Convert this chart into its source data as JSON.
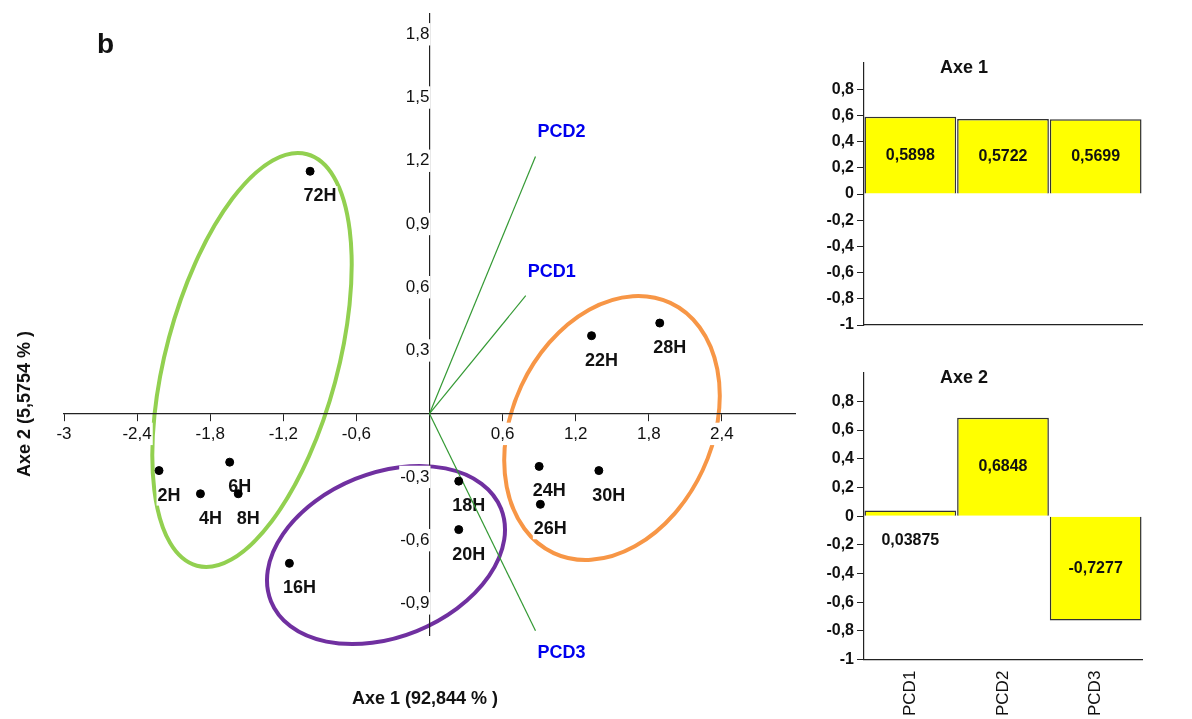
{
  "chart_data": [
    {
      "type": "scatter",
      "title": "b",
      "xlabel": "Axe 1 (92,844  % )",
      "ylabel": "Axe  2 (5,5754  % )",
      "xlim": [
        -3,
        3
      ],
      "ylim": [
        -1.05,
        1.9
      ],
      "xticks": [
        {
          "value": -3,
          "label": "-3"
        },
        {
          "value": -2.4,
          "label": "-2,4"
        },
        {
          "value": -1.8,
          "label": "-1,8"
        },
        {
          "value": -1.2,
          "label": "-1,2"
        },
        {
          "value": -0.6,
          "label": "-0,6"
        },
        {
          "value": 0.6,
          "label": "0,6"
        },
        {
          "value": 1.2,
          "label": "1,2"
        },
        {
          "value": 1.8,
          "label": "1,8"
        },
        {
          "value": 2.4,
          "label": "2,4"
        }
      ],
      "yticks": [
        {
          "value": -0.9,
          "label": "-0,9"
        },
        {
          "value": -0.6,
          "label": "-0,6"
        },
        {
          "value": -0.3,
          "label": "-0,3"
        },
        {
          "value": 0.3,
          "label": "0,3"
        },
        {
          "value": 0.6,
          "label": "0,6"
        },
        {
          "value": 0.9,
          "label": "0,9"
        },
        {
          "value": 1.2,
          "label": "1,2"
        },
        {
          "value": 1.5,
          "label": "1,5"
        },
        {
          "value": 1.8,
          "label": "1,8"
        }
      ],
      "legend": false,
      "series": [
        {
          "type": "scatter",
          "marker": "circle",
          "color": "#000000",
          "x": [
            -0.98,
            1.33,
            1.89,
            -2.22,
            -1.64,
            -1.88,
            -1.57,
            -1.15,
            0.24,
            0.24,
            0.9,
            0.91,
            1.39
          ],
          "values": [
            1.15,
            0.37,
            0.43,
            -0.27,
            -0.23,
            -0.38,
            -0.38,
            -0.71,
            -0.32,
            -0.55,
            -0.25,
            -0.43,
            -0.27
          ]
        },
        {
          "type": "line",
          "name": "PCD1",
          "color": "#339933",
          "x": [
            0,
            0.79
          ],
          "values": [
            0,
            0.56
          ]
        },
        {
          "type": "line",
          "name": "PCD2",
          "color": "#339933",
          "x": [
            0,
            0.87
          ],
          "values": [
            0,
            1.22
          ]
        },
        {
          "type": "line",
          "name": "PCD3",
          "color": "#339933",
          "x": [
            0,
            0.87
          ],
          "values": [
            0,
            -1.03
          ]
        }
      ],
      "annotations": [
        {
          "text": "72H",
          "x": -0.98,
          "y": 1.15
        },
        {
          "text": "22H",
          "x": 1.33,
          "y": 0.37
        },
        {
          "text": "28H",
          "x": 1.89,
          "y": 0.43
        },
        {
          "text": "2H",
          "x": -2.22,
          "y": -0.27
        },
        {
          "text": "6H",
          "x": -1.64,
          "y": -0.23
        },
        {
          "text": "4H",
          "x": -1.88,
          "y": -0.38
        },
        {
          "text": "8H",
          "x": -1.57,
          "y": -0.38
        },
        {
          "text": "16H",
          "x": -1.15,
          "y": -0.71
        },
        {
          "text": "18H",
          "x": 0.24,
          "y": -0.32
        },
        {
          "text": "20H",
          "x": 0.24,
          "y": -0.55
        },
        {
          "text": "24H",
          "x": 0.9,
          "y": -0.25
        },
        {
          "text": "26H",
          "x": 0.91,
          "y": -0.43
        },
        {
          "text": "30H",
          "x": 1.39,
          "y": -0.27
        }
      ]
    },
    {
      "type": "bar",
      "title": "Axe 1",
      "categories": [
        null,
        null,
        null
      ],
      "values": [
        0.5898,
        0.5722,
        0.5699
      ],
      "value_labels": [
        "0,5898",
        "0,5722",
        "0,5699"
      ],
      "color": "#ffff00",
      "ylim": [
        -1,
        1
      ],
      "yticks": [
        {
          "value": -1,
          "label": "-1"
        },
        {
          "value": -0.8,
          "label": "-0,8"
        },
        {
          "value": -0.6,
          "label": "-0,6"
        },
        {
          "value": -0.4,
          "label": "-0,4"
        },
        {
          "value": -0.2,
          "label": "-0,2"
        },
        0,
        {
          "value": 0.2,
          "label": "0,2"
        },
        {
          "value": 0.4,
          "label": "0,4"
        },
        {
          "value": 0.6,
          "label": "0,6"
        },
        {
          "value": 0.8,
          "label": "0,8"
        }
      ],
      "tick_labels": "y",
      "legend": false
    },
    {
      "type": "bar",
      "title": "Axe 2",
      "categories": [
        "PCD1",
        "PCD2",
        "PCD3"
      ],
      "values": [
        0.03875,
        0.6848,
        -0.7277
      ],
      "value_labels": [
        "0,03875",
        "0,6848",
        "-0,7277"
      ],
      "color": "#ffff00",
      "ylim": [
        -1,
        1
      ],
      "yticks": [
        {
          "value": -1,
          "label": "-1"
        },
        {
          "value": -0.8,
          "label": "-0,8"
        },
        {
          "value": -0.6,
          "label": "-0,6"
        },
        {
          "value": -0.4,
          "label": "-0,4"
        },
        {
          "value": -0.2,
          "label": "-0,2"
        },
        0,
        {
          "value": 0.2,
          "label": "0,2"
        },
        {
          "value": 0.4,
          "label": "0,4"
        },
        {
          "value": 0.6,
          "label": "0,6"
        },
        {
          "value": 0.8,
          "label": "0,8"
        }
      ],
      "legend": false
    }
  ]
}
